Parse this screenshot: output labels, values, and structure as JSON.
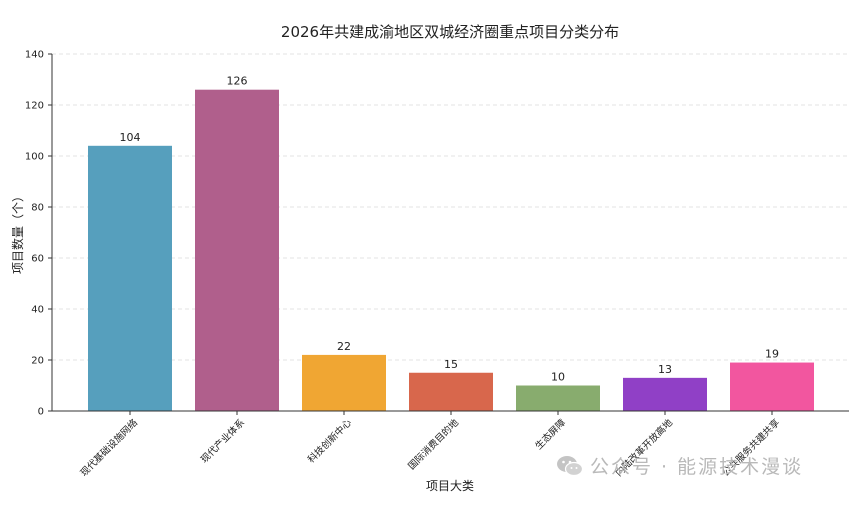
{
  "chart_data": {
    "type": "bar",
    "title": "2026年共建成渝地区双城经济圈重点项目分类分布",
    "xlabel": "项目大类",
    "ylabel": "项目数量（个）",
    "ylim": [
      0,
      140
    ],
    "yticks": [
      0,
      20,
      40,
      60,
      80,
      100,
      120,
      140
    ],
    "grid": true,
    "categories": [
      "现代基础设施网络",
      "现代产业体系",
      "科技创新中心",
      "国际消费目的地",
      "生态屏障",
      "内陆改革开放高地",
      "公共服务共建共享"
    ],
    "values": [
      104,
      126,
      22,
      15,
      10,
      13,
      19
    ],
    "colors": [
      "#569fbd",
      "#b05f8c",
      "#f0a633",
      "#d8674c",
      "#88ac6e",
      "#9040c6",
      "#f2569f"
    ]
  },
  "watermark": {
    "icon": "wechat-icon",
    "text": "公众号 · 能源技术漫谈"
  }
}
